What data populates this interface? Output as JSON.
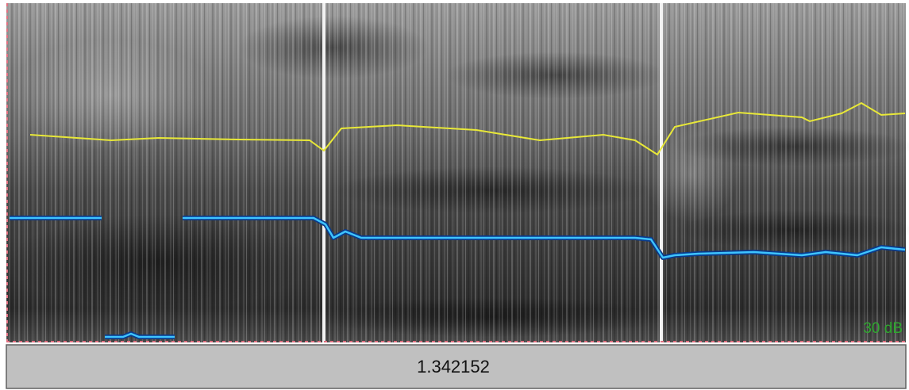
{
  "spectrogram": {
    "scale_label": "30 dB"
  },
  "status_bar": {
    "time": "1.342152"
  }
}
